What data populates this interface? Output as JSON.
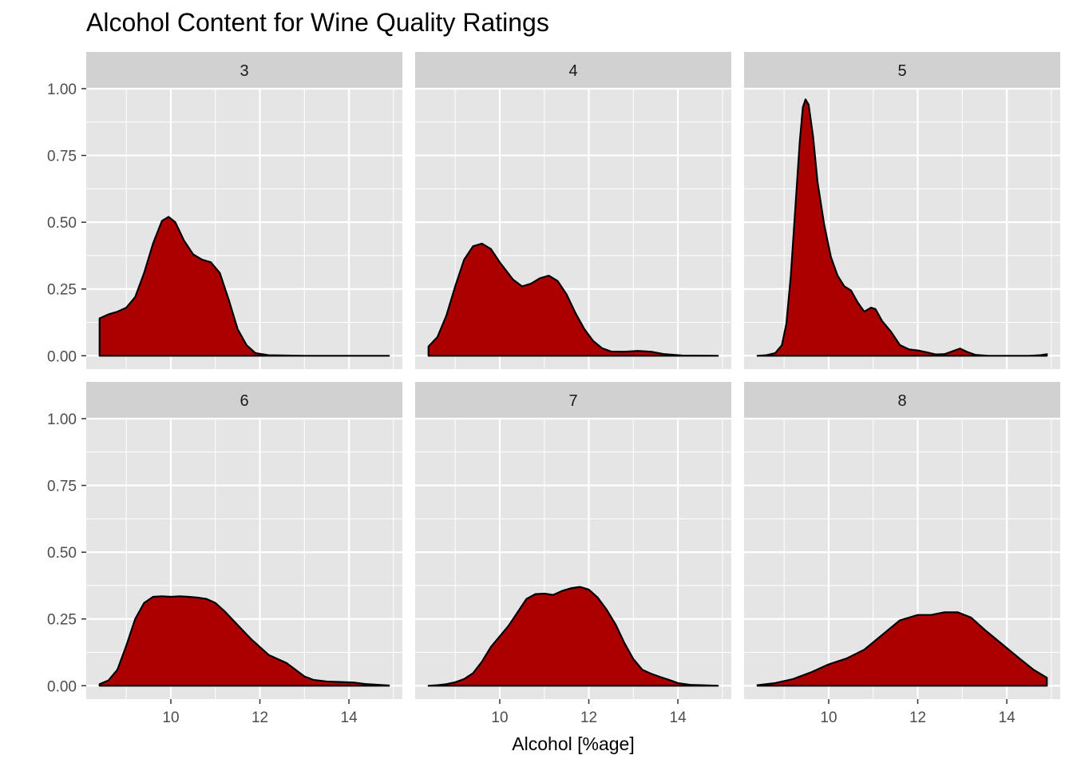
{
  "chart_data": {
    "type": "area",
    "title": "Alcohol Content for Wine Quality Ratings",
    "xlabel": "Alcohol [%age]",
    "ylabel": "",
    "xlim": [
      8.1,
      15.2
    ],
    "ylim": [
      -0.05,
      1.0
    ],
    "x_ticks": [
      10,
      12,
      14
    ],
    "y_ticks": [
      0.0,
      0.25,
      0.5,
      0.75,
      1.0
    ],
    "x_tick_labels": [
      "10",
      "12",
      "14"
    ],
    "y_tick_labels": [
      "0.00",
      "0.25",
      "0.50",
      "0.75",
      "1.00"
    ],
    "grid": true,
    "colors": {
      "fill": "#AA0000",
      "outline": "#000000",
      "panel": "#E5E5E5",
      "grid": "#FFFFFF",
      "strip": "#D1D1D1"
    },
    "panels": [
      {
        "label": "3",
        "points": [
          [
            8.4,
            0.0
          ],
          [
            8.4,
            0.14
          ],
          [
            8.6,
            0.155
          ],
          [
            8.8,
            0.165
          ],
          [
            9.0,
            0.18
          ],
          [
            9.2,
            0.22
          ],
          [
            9.4,
            0.31
          ],
          [
            9.6,
            0.42
          ],
          [
            9.8,
            0.505
          ],
          [
            9.95,
            0.52
          ],
          [
            10.1,
            0.5
          ],
          [
            10.3,
            0.43
          ],
          [
            10.5,
            0.38
          ],
          [
            10.7,
            0.36
          ],
          [
            10.9,
            0.35
          ],
          [
            11.1,
            0.31
          ],
          [
            11.3,
            0.21
          ],
          [
            11.5,
            0.1
          ],
          [
            11.7,
            0.04
          ],
          [
            11.9,
            0.01
          ],
          [
            12.2,
            0.002
          ],
          [
            13.0,
            0.0
          ],
          [
            14.9,
            0.0
          ]
        ]
      },
      {
        "label": "4",
        "points": [
          [
            8.4,
            0.0
          ],
          [
            8.4,
            0.035
          ],
          [
            8.6,
            0.07
          ],
          [
            8.8,
            0.15
          ],
          [
            9.0,
            0.26
          ],
          [
            9.2,
            0.36
          ],
          [
            9.4,
            0.41
          ],
          [
            9.6,
            0.42
          ],
          [
            9.8,
            0.4
          ],
          [
            10.0,
            0.35
          ],
          [
            10.3,
            0.285
          ],
          [
            10.5,
            0.26
          ],
          [
            10.7,
            0.27
          ],
          [
            10.9,
            0.29
          ],
          [
            11.1,
            0.3
          ],
          [
            11.3,
            0.28
          ],
          [
            11.5,
            0.23
          ],
          [
            11.7,
            0.16
          ],
          [
            11.9,
            0.1
          ],
          [
            12.1,
            0.055
          ],
          [
            12.3,
            0.028
          ],
          [
            12.5,
            0.016
          ],
          [
            12.8,
            0.015
          ],
          [
            13.1,
            0.018
          ],
          [
            13.4,
            0.015
          ],
          [
            13.7,
            0.006
          ],
          [
            14.1,
            0.001
          ],
          [
            14.9,
            0.0
          ]
        ]
      },
      {
        "label": "5",
        "points": [
          [
            8.4,
            0.0
          ],
          [
            8.6,
            0.002
          ],
          [
            8.8,
            0.01
          ],
          [
            8.95,
            0.04
          ],
          [
            9.05,
            0.12
          ],
          [
            9.15,
            0.3
          ],
          [
            9.25,
            0.55
          ],
          [
            9.35,
            0.8
          ],
          [
            9.42,
            0.93
          ],
          [
            9.48,
            0.96
          ],
          [
            9.55,
            0.94
          ],
          [
            9.65,
            0.82
          ],
          [
            9.75,
            0.65
          ],
          [
            9.9,
            0.49
          ],
          [
            10.05,
            0.37
          ],
          [
            10.2,
            0.3
          ],
          [
            10.35,
            0.26
          ],
          [
            10.5,
            0.245
          ],
          [
            10.65,
            0.2
          ],
          [
            10.8,
            0.165
          ],
          [
            10.95,
            0.18
          ],
          [
            11.05,
            0.175
          ],
          [
            11.2,
            0.13
          ],
          [
            11.4,
            0.09
          ],
          [
            11.6,
            0.04
          ],
          [
            11.8,
            0.024
          ],
          [
            12.0,
            0.02
          ],
          [
            12.2,
            0.013
          ],
          [
            12.4,
            0.005
          ],
          [
            12.6,
            0.006
          ],
          [
            12.8,
            0.018
          ],
          [
            12.95,
            0.027
          ],
          [
            13.1,
            0.015
          ],
          [
            13.3,
            0.003
          ],
          [
            13.6,
            0.0
          ],
          [
            14.5,
            0.0
          ],
          [
            14.75,
            0.002
          ],
          [
            14.9,
            0.006
          ],
          [
            14.9,
            0.0
          ]
        ]
      },
      {
        "label": "6",
        "points": [
          [
            8.4,
            0.0
          ],
          [
            8.4,
            0.006
          ],
          [
            8.6,
            0.02
          ],
          [
            8.8,
            0.06
          ],
          [
            9.0,
            0.15
          ],
          [
            9.2,
            0.25
          ],
          [
            9.4,
            0.31
          ],
          [
            9.6,
            0.333
          ],
          [
            9.8,
            0.335
          ],
          [
            10.0,
            0.333
          ],
          [
            10.2,
            0.335
          ],
          [
            10.4,
            0.333
          ],
          [
            10.6,
            0.33
          ],
          [
            10.8,
            0.325
          ],
          [
            11.0,
            0.31
          ],
          [
            11.2,
            0.28
          ],
          [
            11.4,
            0.245
          ],
          [
            11.6,
            0.21
          ],
          [
            11.8,
            0.175
          ],
          [
            12.0,
            0.145
          ],
          [
            12.2,
            0.115
          ],
          [
            12.4,
            0.1
          ],
          [
            12.6,
            0.085
          ],
          [
            12.8,
            0.06
          ],
          [
            13.0,
            0.035
          ],
          [
            13.2,
            0.022
          ],
          [
            13.5,
            0.016
          ],
          [
            13.8,
            0.014
          ],
          [
            14.1,
            0.012
          ],
          [
            14.4,
            0.006
          ],
          [
            14.9,
            0.001
          ],
          [
            14.9,
            0.0
          ]
        ]
      },
      {
        "label": "7",
        "points": [
          [
            8.4,
            0.0
          ],
          [
            8.6,
            0.002
          ],
          [
            8.8,
            0.006
          ],
          [
            9.0,
            0.013
          ],
          [
            9.2,
            0.025
          ],
          [
            9.4,
            0.047
          ],
          [
            9.6,
            0.09
          ],
          [
            9.8,
            0.145
          ],
          [
            10.0,
            0.185
          ],
          [
            10.2,
            0.225
          ],
          [
            10.4,
            0.275
          ],
          [
            10.6,
            0.325
          ],
          [
            10.8,
            0.343
          ],
          [
            11.0,
            0.345
          ],
          [
            11.2,
            0.34
          ],
          [
            11.4,
            0.355
          ],
          [
            11.6,
            0.365
          ],
          [
            11.8,
            0.37
          ],
          [
            12.0,
            0.36
          ],
          [
            12.2,
            0.33
          ],
          [
            12.4,
            0.285
          ],
          [
            12.6,
            0.23
          ],
          [
            12.8,
            0.16
          ],
          [
            13.0,
            0.1
          ],
          [
            13.2,
            0.06
          ],
          [
            13.4,
            0.045
          ],
          [
            13.6,
            0.033
          ],
          [
            13.8,
            0.022
          ],
          [
            14.0,
            0.01
          ],
          [
            14.3,
            0.003
          ],
          [
            14.9,
            0.0
          ]
        ]
      },
      {
        "label": "8",
        "points": [
          [
            8.4,
            0.0
          ],
          [
            8.4,
            0.002
          ],
          [
            8.8,
            0.01
          ],
          [
            9.2,
            0.025
          ],
          [
            9.6,
            0.05
          ],
          [
            10.0,
            0.08
          ],
          [
            10.4,
            0.102
          ],
          [
            10.8,
            0.135
          ],
          [
            11.2,
            0.19
          ],
          [
            11.6,
            0.245
          ],
          [
            12.0,
            0.265
          ],
          [
            12.3,
            0.265
          ],
          [
            12.6,
            0.275
          ],
          [
            12.9,
            0.275
          ],
          [
            13.2,
            0.255
          ],
          [
            13.5,
            0.21
          ],
          [
            13.9,
            0.155
          ],
          [
            14.3,
            0.1
          ],
          [
            14.6,
            0.06
          ],
          [
            14.9,
            0.03
          ],
          [
            14.9,
            0.0
          ]
        ]
      }
    ]
  }
}
